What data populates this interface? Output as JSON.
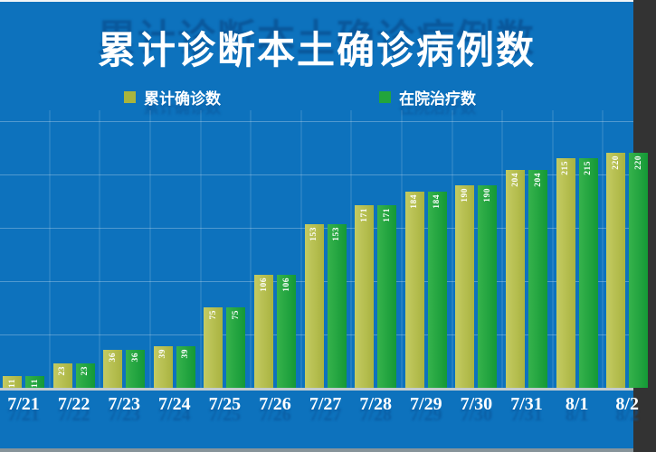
{
  "title": "累计诊断本土确诊病例数",
  "legend": [
    {
      "label": "累计确诊数",
      "color": "#a9b43c"
    },
    {
      "label": "在院治疗数",
      "color": "#22a53c"
    }
  ],
  "colors": {
    "background": "#0d72bd",
    "title_text": "#ffffff",
    "axis_line": "#c3ccd0",
    "gridline": "#4e93cd",
    "bar_label_text": "#ffffff"
  },
  "chart_data": {
    "type": "bar",
    "title": "累计诊断本土确诊病例数",
    "categories": [
      "7/21",
      "7/22",
      "7/23",
      "7/24",
      "7/25",
      "7/26",
      "7/27",
      "7/28",
      "7/29",
      "7/30",
      "7/31",
      "8/1",
      "8/2"
    ],
    "series": [
      {
        "key": "cumulative-confirmed",
        "name": "累计确诊数",
        "color": "#a9b340",
        "color_light": "#c4cb62",
        "values": [
          11,
          23,
          36,
          39,
          75,
          106,
          153,
          171,
          184,
          190,
          204,
          215,
          220
        ]
      },
      {
        "key": "in-hospital",
        "name": "在院治疗数",
        "color": "#149936",
        "color_light": "#36b24c",
        "values": [
          11,
          23,
          36,
          39,
          75,
          106,
          153,
          171,
          184,
          190,
          204,
          215,
          220
        ]
      }
    ],
    "xlabel": "",
    "ylabel": "",
    "ylim": [
      0,
      250
    ],
    "gridline_values": [
      50,
      100,
      150,
      200,
      250
    ],
    "grid": "on",
    "legend_position": "top",
    "data_labels": "rotated 90° white, at top of each bar",
    "notes": "y-axis tick labels cropped off left edge; last category partially cropped at right edge"
  }
}
